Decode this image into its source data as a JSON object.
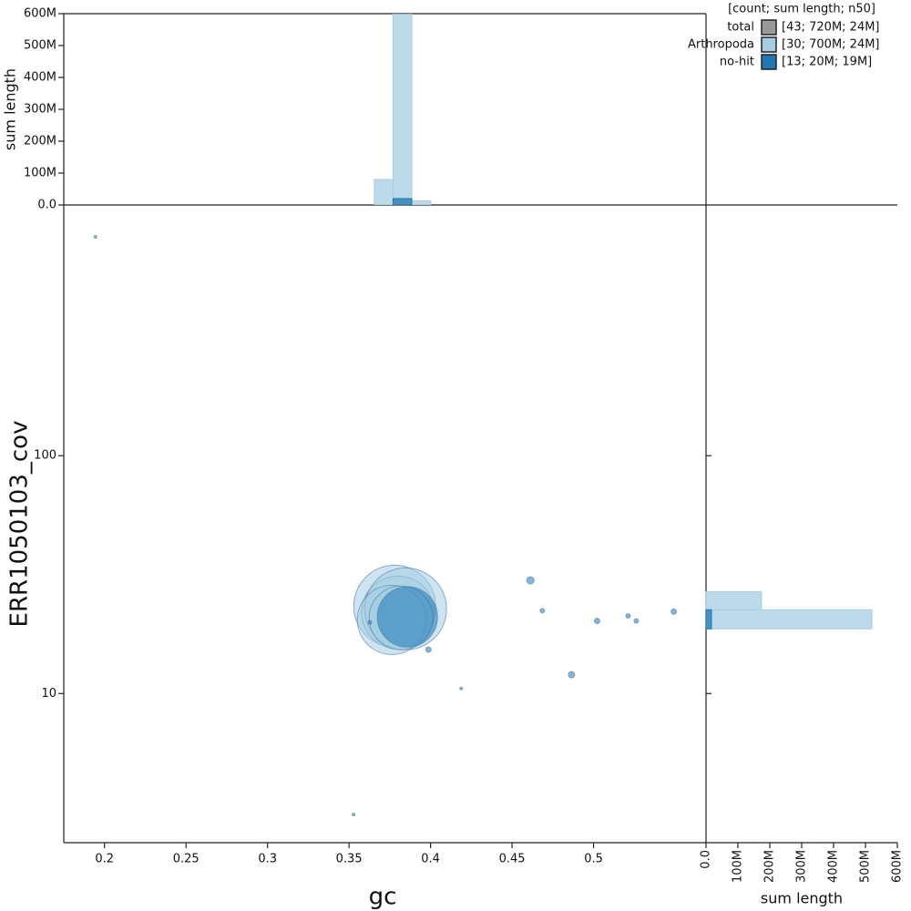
{
  "chart_data": {
    "type": "scatter",
    "x_label": "gc",
    "y_label": "ERR1050103_cov",
    "log_y": true,
    "xlim": [
      0.175,
      0.569
    ],
    "xticks": [
      0.2,
      0.25,
      0.3,
      0.35,
      0.4,
      0.45,
      0.5
    ],
    "ylim": [
      2.36,
      1133
    ],
    "yticks": [
      10,
      100
    ],
    "gc_bins": [
      0.3655,
      0.377,
      0.3885,
      0.4
    ],
    "cov_bins": [
      18.7,
      22.5,
      26.8
    ],
    "hist_label": "sum length",
    "hist_lim": [
      0,
      600000000
    ],
    "hist_ticks": [
      {
        "value": 0,
        "label": "0.0"
      },
      {
        "value": 100000000,
        "label": "100M"
      },
      {
        "value": 200000000,
        "label": "200M"
      },
      {
        "value": 300000000,
        "label": "300M"
      },
      {
        "value": 400000000,
        "label": "400M"
      },
      {
        "value": 500000000,
        "label": "500M"
      },
      {
        "value": 600000000,
        "label": "600M"
      }
    ],
    "legend_title": "[count; sum length; n50]",
    "series": [
      {
        "name": "total",
        "color": "#999999",
        "summary": "[43; 720M; 24M]"
      },
      {
        "name": "Arthropoda",
        "color": "#a6cee3",
        "summary": "[30; 700M; 24M]",
        "x": [
          0.378,
          0.38,
          0.3847,
          0.3763,
          0.3819
        ],
        "y": [
          23.3,
          21.9,
          22.7,
          20.4,
          20.8
        ],
        "sizes": [
          35000000,
          27700000,
          35000000,
          25000000,
          21200000
        ],
        "gc_hist": [
          80000000,
          605000000,
          13000000
        ],
        "cov_hist": [
          520000000,
          174000000
        ]
      },
      {
        "name": "no-hit",
        "color": "#1f78b4",
        "summary": "[13; 20M; 19M]",
        "x": [
          0.3858,
          0.1944,
          0.3628,
          0.4613,
          0.4686,
          0.5022,
          0.5212,
          0.5262,
          0.5492,
          0.3987,
          0.4865,
          0.4188,
          0.3528
        ],
        "y": [
          21.0,
          832,
          19.9,
          29.9,
          22.3,
          20.2,
          21.2,
          20.2,
          22.1,
          15.3,
          12.0,
          10.5,
          3.1
        ],
        "sizes": [
          19000000,
          39000,
          69000,
          277000,
          108000,
          156000,
          108000,
          108000,
          156000,
          156000,
          212000,
          39000,
          39000
        ],
        "gc_hist": [
          0,
          20000000,
          0
        ],
        "cov_hist": [
          17000000,
          0
        ]
      }
    ]
  }
}
